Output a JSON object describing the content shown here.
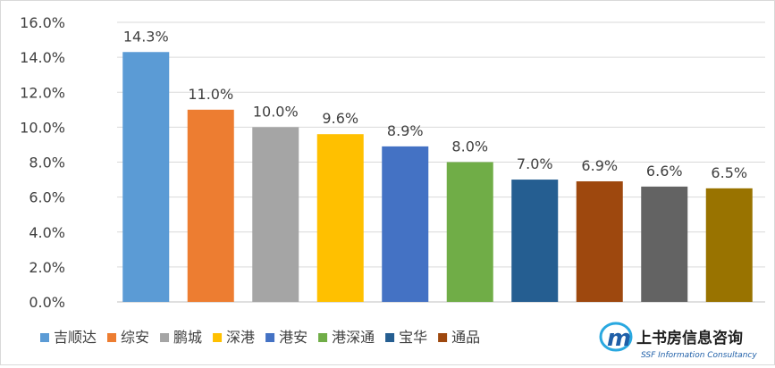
{
  "chart_data": {
    "type": "bar",
    "categories": [
      "吉顺达",
      "综安",
      "鹏城",
      "深港",
      "港安",
      "港深通",
      "宝华",
      "通品",
      "",
      ""
    ],
    "values": [
      14.3,
      11.0,
      10.0,
      9.6,
      8.9,
      8.0,
      7.0,
      6.9,
      6.6,
      6.5
    ],
    "data_labels": [
      "14.3%",
      "11.0%",
      "10.0%",
      "9.6%",
      "8.9%",
      "8.0%",
      "7.0%",
      "6.9%",
      "6.6%",
      "6.5%"
    ],
    "colors": [
      "#5b9bd5",
      "#ed7d31",
      "#a5a5a5",
      "#ffc000",
      "#4472c4",
      "#70ad47",
      "#255e91",
      "#9e480e",
      "#636363",
      "#997300"
    ],
    "y_ticks": [
      "0.0%",
      "2.0%",
      "4.0%",
      "6.0%",
      "8.0%",
      "10.0%",
      "12.0%",
      "14.0%",
      "16.0%"
    ],
    "ylim": [
      0,
      16
    ],
    "grid": true,
    "legend": {
      "placement": "bottom-left",
      "entries": [
        {
          "name": "吉顺达",
          "color": "#5b9bd5"
        },
        {
          "name": "综安",
          "color": "#ed7d31"
        },
        {
          "name": "鹏城",
          "color": "#a5a5a5"
        },
        {
          "name": "深港",
          "color": "#ffc000"
        },
        {
          "name": "港安",
          "color": "#4472c4"
        },
        {
          "name": "港深通",
          "color": "#70ad47"
        },
        {
          "name": "宝华",
          "color": "#255e91"
        },
        {
          "name": "通品",
          "color": "#9e480e"
        }
      ]
    },
    "title": "",
    "xlabel": "",
    "ylabel": ""
  },
  "watermark": {
    "name": "上书房信息咨询",
    "subtitle": "SSF Information Consultancy",
    "logo_colors": [
      "#1f5fa8",
      "#29a8e0"
    ]
  }
}
